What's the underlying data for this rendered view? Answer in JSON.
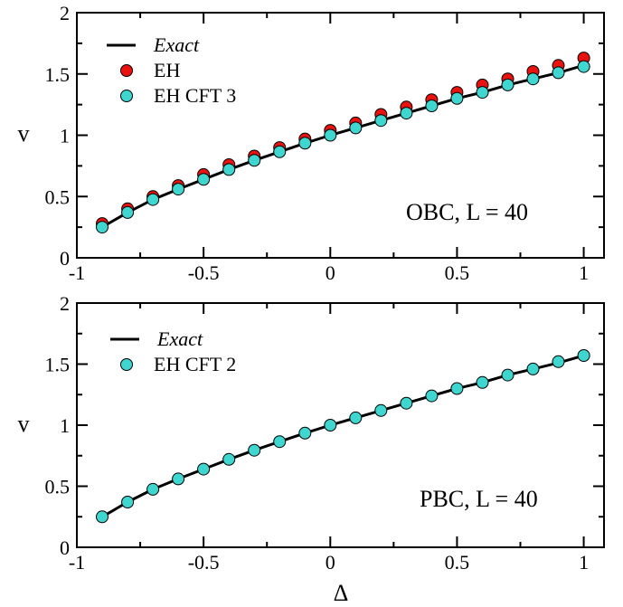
{
  "chart_data": [
    {
      "type": "scatter",
      "panel": "top",
      "xlabel": "",
      "ylabel": "v",
      "xlim": [
        -1,
        1.08
      ],
      "ylim": [
        0,
        2
      ],
      "xticks": [
        -1,
        -0.5,
        0,
        0.5,
        1
      ],
      "xtick_labels": [
        "-1",
        "-0.5",
        "0",
        "0.5",
        "1"
      ],
      "yticks": [
        0,
        0.5,
        1,
        1.5,
        2
      ],
      "ytick_labels": [
        "0",
        "0.5",
        "1",
        "1.5",
        "2"
      ],
      "annotation": "OBC, L = 40",
      "grid": false,
      "legend_position": "top-left",
      "series": [
        {
          "name": "Exact",
          "kind": "line",
          "color": "#000000",
          "x": [
            -0.9,
            -0.8,
            -0.7,
            -0.6,
            -0.5,
            -0.4,
            -0.3,
            -0.2,
            -0.1,
            0.0,
            0.1,
            0.2,
            0.3,
            0.4,
            0.5,
            0.6,
            0.7,
            0.8,
            0.9,
            1.0
          ],
          "y": [
            0.25,
            0.37,
            0.475,
            0.56,
            0.64,
            0.72,
            0.795,
            0.865,
            0.935,
            1.0,
            1.06,
            1.12,
            1.18,
            1.24,
            1.3,
            1.35,
            1.41,
            1.46,
            1.51,
            1.57
          ]
        },
        {
          "name": "EH",
          "kind": "marker",
          "color": "#e8130f",
          "x": [
            -0.9,
            -0.8,
            -0.7,
            -0.6,
            -0.5,
            -0.4,
            -0.3,
            -0.2,
            -0.1,
            0.0,
            0.1,
            0.2,
            0.3,
            0.4,
            0.5,
            0.6,
            0.7,
            0.8,
            0.9,
            1.0
          ],
          "y": [
            0.28,
            0.4,
            0.5,
            0.59,
            0.68,
            0.76,
            0.83,
            0.9,
            0.97,
            1.04,
            1.1,
            1.17,
            1.23,
            1.29,
            1.35,
            1.41,
            1.46,
            1.52,
            1.57,
            1.63
          ]
        },
        {
          "name": "EH CFT 3",
          "kind": "marker",
          "color": "#3fd6d0",
          "x": [
            -0.9,
            -0.8,
            -0.7,
            -0.6,
            -0.5,
            -0.4,
            -0.3,
            -0.2,
            -0.1,
            0.0,
            0.1,
            0.2,
            0.3,
            0.4,
            0.5,
            0.6,
            0.7,
            0.8,
            0.9,
            1.0
          ],
          "y": [
            0.25,
            0.37,
            0.475,
            0.56,
            0.64,
            0.72,
            0.795,
            0.865,
            0.935,
            1.0,
            1.06,
            1.12,
            1.18,
            1.24,
            1.3,
            1.35,
            1.41,
            1.46,
            1.51,
            1.56
          ]
        }
      ]
    },
    {
      "type": "scatter",
      "panel": "bottom",
      "xlabel": "Δ",
      "ylabel": "v",
      "xlim": [
        -1,
        1.08
      ],
      "ylim": [
        0,
        2
      ],
      "xticks": [
        -1,
        -0.5,
        0,
        0.5,
        1
      ],
      "xtick_labels": [
        "-1",
        "-0.5",
        "0",
        "0.5",
        "1"
      ],
      "yticks": [
        0,
        0.5,
        1,
        1.5,
        2
      ],
      "ytick_labels": [
        "0",
        "0.5",
        "1",
        "1.5",
        "2"
      ],
      "annotation": "PBC, L = 40",
      "grid": false,
      "legend_position": "top-left",
      "series": [
        {
          "name": "Exact",
          "kind": "line",
          "color": "#000000",
          "x": [
            -0.9,
            -0.8,
            -0.7,
            -0.6,
            -0.5,
            -0.4,
            -0.3,
            -0.2,
            -0.1,
            0.0,
            0.1,
            0.2,
            0.3,
            0.4,
            0.5,
            0.6,
            0.7,
            0.8,
            0.9,
            1.0
          ],
          "y": [
            0.25,
            0.37,
            0.475,
            0.56,
            0.64,
            0.72,
            0.795,
            0.865,
            0.935,
            1.0,
            1.06,
            1.12,
            1.18,
            1.24,
            1.3,
            1.35,
            1.41,
            1.46,
            1.51,
            1.57
          ]
        },
        {
          "name": "EH CFT 2",
          "kind": "marker",
          "color": "#3fd6d0",
          "x": [
            -0.9,
            -0.8,
            -0.7,
            -0.6,
            -0.5,
            -0.4,
            -0.3,
            -0.2,
            -0.1,
            0.0,
            0.1,
            0.2,
            0.3,
            0.4,
            0.5,
            0.6,
            0.7,
            0.8,
            0.9,
            1.0
          ],
          "y": [
            0.25,
            0.37,
            0.475,
            0.56,
            0.64,
            0.72,
            0.795,
            0.865,
            0.935,
            1.0,
            1.06,
            1.12,
            1.18,
            1.24,
            1.3,
            1.35,
            1.41,
            1.46,
            1.52,
            1.57
          ]
        }
      ]
    }
  ]
}
